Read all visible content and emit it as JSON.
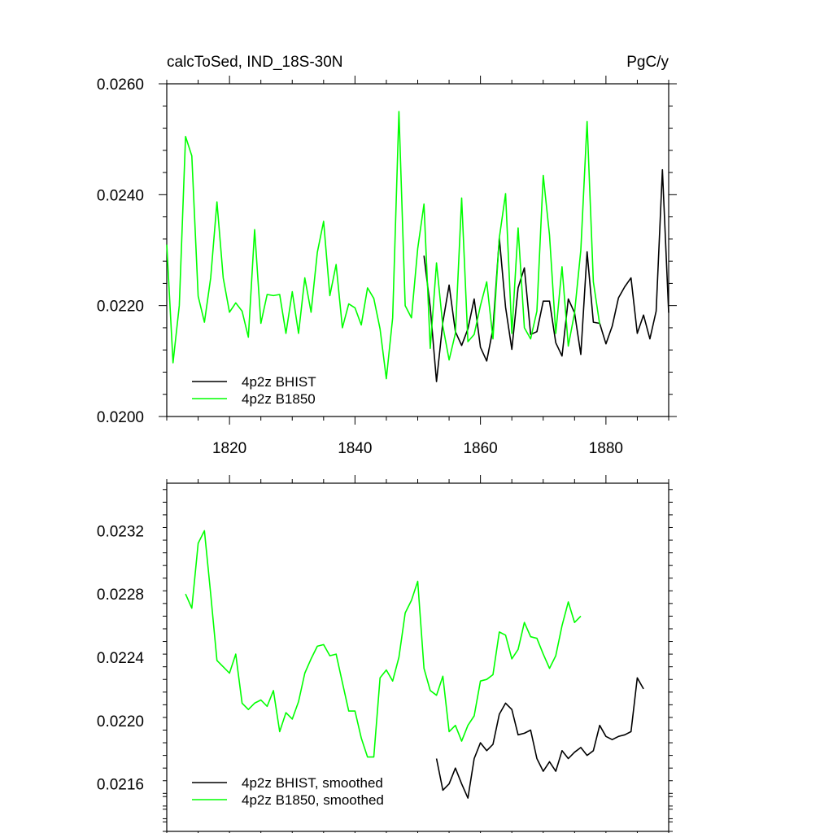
{
  "chart_data": [
    {
      "type": "line",
      "title": "calcToSed, IND_18S-30N",
      "units": "PgC/y",
      "xlim": [
        1810,
        1890
      ],
      "ylim": [
        0.02,
        0.026
      ],
      "x_ticks": [
        1820,
        1840,
        1860,
        1880
      ],
      "y_ticks": [
        "0.0200",
        "0.0220",
        "0.0240",
        "0.0260"
      ],
      "y_tick_values": [
        0.02,
        0.022,
        0.024,
        0.026
      ],
      "legend_position": "bottom-left",
      "series": [
        {
          "name": "4p2z BHIST",
          "color": "#000000",
          "x": [
            1851,
            1852,
            1853,
            1854,
            1855,
            1856,
            1857,
            1858,
            1859,
            1860,
            1861,
            1862,
            1863,
            1864,
            1865,
            1866,
            1867,
            1868,
            1869,
            1870,
            1871,
            1872,
            1873,
            1874,
            1875,
            1876,
            1877,
            1878,
            1879,
            1880,
            1881,
            1882,
            1883,
            1884,
            1885,
            1886,
            1887,
            1888,
            1889,
            1890
          ],
          "values": [
            0.0229,
            0.02197,
            0.02063,
            0.0217,
            0.02237,
            0.02153,
            0.02128,
            0.02158,
            0.02212,
            0.02125,
            0.021,
            0.02158,
            0.02322,
            0.02197,
            0.02121,
            0.02232,
            0.02268,
            0.02148,
            0.02153,
            0.02208,
            0.02208,
            0.02133,
            0.02109,
            0.02212,
            0.02187,
            0.02112,
            0.02297,
            0.0217,
            0.02168,
            0.02131,
            0.02163,
            0.02214,
            0.02234,
            0.0225,
            0.0215,
            0.02183,
            0.0214,
            0.0219,
            0.02445,
            0.02187
          ]
        },
        {
          "name": "4p2z B1850",
          "color": "#00ff00",
          "x": [
            1810,
            1811,
            1812,
            1813,
            1814,
            1815,
            1816,
            1817,
            1818,
            1819,
            1820,
            1821,
            1822,
            1823,
            1824,
            1825,
            1826,
            1827,
            1828,
            1829,
            1830,
            1831,
            1832,
            1833,
            1834,
            1835,
            1836,
            1837,
            1838,
            1839,
            1840,
            1841,
            1842,
            1843,
            1844,
            1845,
            1846,
            1847,
            1848,
            1849,
            1850,
            1851,
            1852,
            1853,
            1854,
            1855,
            1856,
            1857,
            1858,
            1859,
            1860,
            1861,
            1862,
            1863,
            1864,
            1865,
            1866,
            1867,
            1868,
            1869,
            1870,
            1871,
            1872,
            1873,
            1874,
            1875,
            1876,
            1877,
            1878,
            1879,
            1880
          ],
          "values": [
            0.0231,
            0.02097,
            0.022,
            0.02505,
            0.0247,
            0.02217,
            0.0217,
            0.0225,
            0.02387,
            0.0225,
            0.02188,
            0.02205,
            0.0219,
            0.02143,
            0.02337,
            0.02168,
            0.0222,
            0.02218,
            0.0222,
            0.0215,
            0.02225,
            0.0215,
            0.0225,
            0.02188,
            0.02296,
            0.02352,
            0.02218,
            0.02274,
            0.0216,
            0.02203,
            0.02196,
            0.02165,
            0.02232,
            0.02213,
            0.02158,
            0.02068,
            0.02178,
            0.0255,
            0.022,
            0.02178,
            0.02303,
            0.02383,
            0.02123,
            0.02277,
            0.02163,
            0.02102,
            0.0215,
            0.02394,
            0.02135,
            0.02148,
            0.022,
            0.02243,
            0.0214,
            0.02322,
            0.02402,
            0.0215,
            0.0234,
            0.0216,
            0.0214,
            0.0219,
            0.02435,
            0.02327,
            0.0215,
            0.0227,
            0.02127,
            0.02187,
            0.023,
            0.02532,
            0.02243,
            0.02166,
            null
          ],
          "values_note": ""
        }
      ]
    },
    {
      "type": "line",
      "title": "",
      "xlim": [
        1810,
        1890
      ],
      "ylim": [
        0.0213,
        0.0235
      ],
      "y_ticks": [
        "0.0216",
        "0.0220",
        "0.0224",
        "0.0228",
        "0.0232"
      ],
      "y_tick_values": [
        0.0216,
        0.022,
        0.0224,
        0.0228,
        0.0232
      ],
      "legend_position": "bottom-left",
      "series": [
        {
          "name": "4p2z BHIST, smoothed",
          "color": "#000000",
          "x": [
            1853,
            1854,
            1855,
            1856,
            1857,
            1858,
            1859,
            1860,
            1861,
            1862,
            1863,
            1864,
            1865,
            1866,
            1867,
            1868,
            1869,
            1870,
            1871,
            1872,
            1873,
            1874,
            1875,
            1876,
            1877,
            1878,
            1879,
            1880,
            1881,
            1882,
            1883,
            1884,
            1885,
            1886,
            1887
          ],
          "values": [
            0.02176,
            0.02156,
            0.0216,
            0.0217,
            0.0216,
            0.02151,
            0.02176,
            0.02186,
            0.02181,
            0.02185,
            0.02204,
            0.02211,
            0.02207,
            0.02191,
            0.02192,
            0.02194,
            0.02176,
            0.02168,
            0.02174,
            0.02168,
            0.02181,
            0.02176,
            0.0218,
            0.02183,
            0.02178,
            0.02181,
            0.02197,
            0.0219,
            0.02188,
            0.0219,
            0.02191,
            0.02193,
            0.02227,
            0.0222,
            null
          ]
        },
        {
          "name": "4p2z B1850, smoothed",
          "color": "#00ff00",
          "x": [
            1813,
            1814,
            1815,
            1816,
            1817,
            1818,
            1819,
            1820,
            1821,
            1822,
            1823,
            1824,
            1825,
            1826,
            1827,
            1828,
            1829,
            1830,
            1831,
            1832,
            1833,
            1834,
            1835,
            1836,
            1837,
            1838,
            1839,
            1840,
            1841,
            1842,
            1843,
            1844,
            1845,
            1846,
            1847,
            1848,
            1849,
            1850,
            1851,
            1852,
            1853,
            1854,
            1855,
            1856,
            1857,
            1858,
            1859,
            1860,
            1861,
            1862,
            1863,
            1864,
            1865,
            1866,
            1867,
            1868,
            1869,
            1870,
            1871,
            1872,
            1873,
            1874,
            1875,
            1876,
            1877
          ],
          "values": [
            0.0228,
            0.02271,
            0.02312,
            0.0232,
            0.0228,
            0.02238,
            0.02234,
            0.0223,
            0.02242,
            0.02211,
            0.02207,
            0.02211,
            0.02213,
            0.02209,
            0.02219,
            0.02193,
            0.02205,
            0.02201,
            0.02212,
            0.0223,
            0.02239,
            0.02247,
            0.02248,
            0.02241,
            0.02242,
            0.02224,
            0.02206,
            0.02206,
            0.02189,
            0.02177,
            0.02177,
            0.02227,
            0.02232,
            0.02225,
            0.0224,
            0.02268,
            0.02276,
            0.02288,
            0.02233,
            0.02219,
            0.02216,
            0.02228,
            0.02193,
            0.02197,
            0.02187,
            0.02197,
            0.02203,
            0.02225,
            0.02226,
            0.02229,
            0.02256,
            0.02254,
            0.02239,
            0.02245,
            0.02262,
            0.02253,
            0.02252,
            0.02242,
            0.02233,
            0.02241,
            0.0226,
            0.02275,
            0.02262,
            0.02266,
            null
          ]
        }
      ]
    }
  ]
}
